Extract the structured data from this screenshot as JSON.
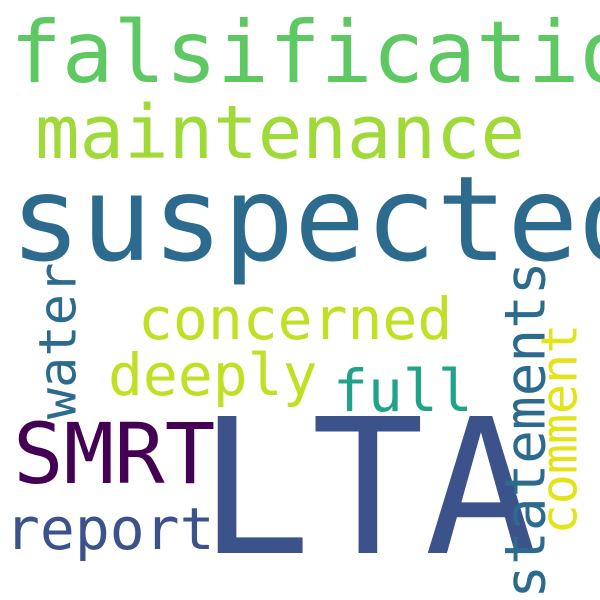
{
  "words": {
    "falsification": {
      "text": "falsification",
      "color": "#5ec962"
    },
    "maintenance": {
      "text": "maintenance",
      "color": "#a0da39"
    },
    "suspected": {
      "text": "suspected",
      "color": "#2c6b8e"
    },
    "concerned": {
      "text": "concerned",
      "color": "#c2df23"
    },
    "deeply": {
      "text": "deeply",
      "color": "#c2df23"
    },
    "full": {
      "text": "full",
      "color": "#20a386"
    },
    "smrt": {
      "text": "SMRT",
      "color": "#440154"
    },
    "lta": {
      "text": "LTA",
      "color": "#3b528b"
    },
    "report": {
      "text": "report",
      "color": "#3b528b"
    },
    "water": {
      "text": "water",
      "color": "#2c6b8e"
    },
    "statements": {
      "text": "statements",
      "color": "#2c6b8e"
    },
    "comment": {
      "text": "comment",
      "color": "#e2e418"
    }
  }
}
